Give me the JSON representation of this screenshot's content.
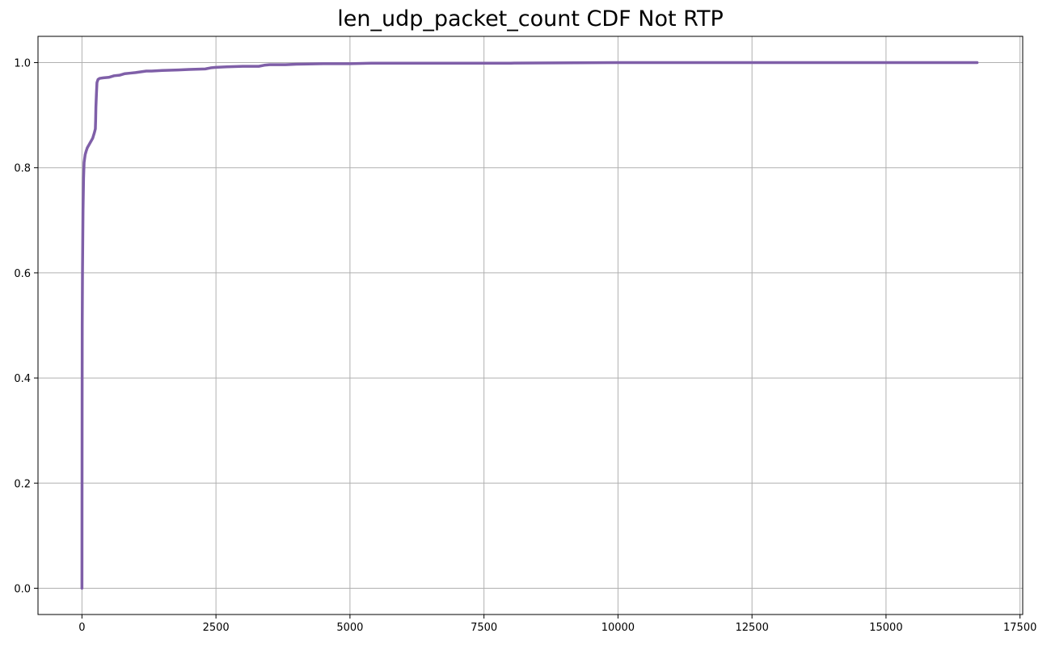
{
  "chart_data": {
    "type": "line",
    "title": "len_udp_packet_count CDF Not RTP",
    "xlabel": "",
    "ylabel": "",
    "xlim": [
      -820,
      17550
    ],
    "ylim": [
      -0.05,
      1.05
    ],
    "x_ticks": [
      0,
      2500,
      5000,
      7500,
      10000,
      12500,
      15000,
      17500
    ],
    "y_ticks": [
      0.0,
      0.2,
      0.4,
      0.6,
      0.8,
      1.0
    ],
    "grid": true,
    "series": [
      {
        "color": "#7f5fa8",
        "x": [
          0,
          1,
          3,
          5,
          10,
          15,
          20,
          30,
          40,
          60,
          80,
          100,
          150,
          200,
          230,
          250,
          255,
          260,
          270,
          280,
          300,
          330,
          400,
          500,
          600,
          700,
          800,
          900,
          1000,
          1200,
          1300,
          1500,
          1800,
          2000,
          2300,
          2400,
          2500,
          2700,
          3000,
          3300,
          3400,
          3500,
          3800,
          4000,
          4500,
          5000,
          5400,
          6000,
          8000,
          10000,
          12000,
          15000,
          16700
        ],
        "y": [
          0.0,
          0.15,
          0.35,
          0.5,
          0.6,
          0.66,
          0.72,
          0.78,
          0.81,
          0.825,
          0.832,
          0.838,
          0.847,
          0.856,
          0.866,
          0.874,
          0.89,
          0.915,
          0.94,
          0.962,
          0.968,
          0.97,
          0.971,
          0.972,
          0.975,
          0.976,
          0.979,
          0.98,
          0.981,
          0.984,
          0.984,
          0.985,
          0.986,
          0.987,
          0.988,
          0.99,
          0.991,
          0.992,
          0.993,
          0.993,
          0.995,
          0.996,
          0.996,
          0.997,
          0.998,
          0.998,
          0.999,
          0.999,
          0.999,
          1.0,
          1.0,
          1.0,
          1.0
        ]
      }
    ]
  }
}
